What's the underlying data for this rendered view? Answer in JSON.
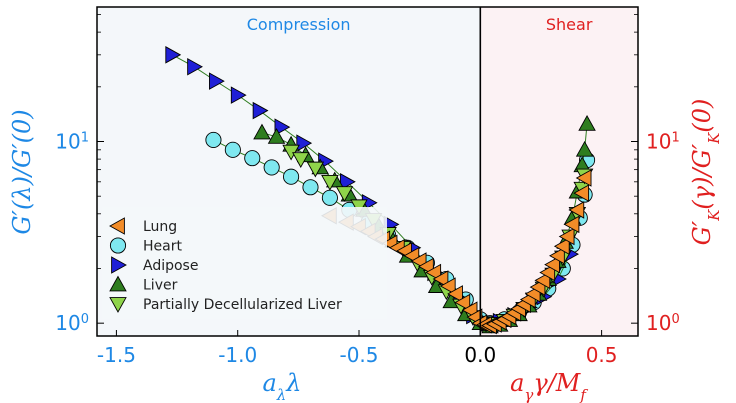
{
  "chart_data": {
    "type": "scatter",
    "title": "",
    "regions": {
      "left_label": "Compression",
      "right_label": "Shear",
      "left_color": "#1e88e5",
      "right_color": "#e02020",
      "left_bg": "#f4f7fa",
      "right_bg": "#fcf2f4",
      "boundary_x": 0.0
    },
    "xlim": [
      -1.58,
      0.65
    ],
    "ylim": [
      0.85,
      55
    ],
    "yscale": "log",
    "x_ticks": [
      {
        "value": -1.5,
        "label": "-1.5",
        "color": "#1e88e5"
      },
      {
        "value": -1.0,
        "label": "-1.0",
        "color": "#1e88e5"
      },
      {
        "value": -0.5,
        "label": "-0.5",
        "color": "#1e88e5"
      },
      {
        "value": 0.0,
        "label": "0.0",
        "color": "#000000"
      },
      {
        "value": 0.5,
        "label": "0.5",
        "color": "#e02020"
      }
    ],
    "y_ticks_left": [
      {
        "value": 1,
        "label": "10⁰"
      },
      {
        "value": 10,
        "label": "10¹"
      }
    ],
    "y_ticks_right": [
      {
        "value": 1,
        "label": "10⁰"
      },
      {
        "value": 10,
        "label": "10¹"
      }
    ],
    "xlabel_left": "aλλ",
    "xlabel_right": "aγγ/Mf",
    "ylabel_left": "G′(λ)/G′(0)",
    "ylabel_right": "G′K(γ)/G′K(0)",
    "legend_position": "lower-left",
    "series": [
      {
        "name": "Lung",
        "marker": "triangle-left",
        "color": "#f28c28",
        "connect": false,
        "points": [
          [
            -0.62,
            3.9
          ],
          [
            -0.55,
            3.6
          ],
          [
            -0.5,
            3.4
          ],
          [
            -0.46,
            3.2
          ],
          [
            -0.43,
            3.0
          ],
          [
            -0.4,
            2.9
          ],
          [
            -0.37,
            2.75
          ],
          [
            -0.34,
            2.6
          ],
          [
            -0.31,
            2.5
          ],
          [
            -0.28,
            2.35
          ],
          [
            -0.25,
            2.2
          ],
          [
            -0.22,
            2.05
          ],
          [
            -0.19,
            1.9
          ],
          [
            -0.16,
            1.75
          ],
          [
            -0.13,
            1.6
          ],
          [
            -0.1,
            1.45
          ],
          [
            -0.07,
            1.3
          ],
          [
            -0.04,
            1.18
          ],
          [
            -0.02,
            1.08
          ],
          [
            0.0,
            1.0
          ],
          [
            0.02,
            0.98
          ],
          [
            0.04,
            0.97
          ],
          [
            0.06,
            0.99
          ],
          [
            0.08,
            1.02
          ],
          [
            0.1,
            1.05
          ],
          [
            0.12,
            1.09
          ],
          [
            0.14,
            1.14
          ],
          [
            0.16,
            1.2
          ],
          [
            0.18,
            1.27
          ],
          [
            0.2,
            1.35
          ],
          [
            0.22,
            1.45
          ],
          [
            0.24,
            1.58
          ],
          [
            0.26,
            1.72
          ],
          [
            0.28,
            1.9
          ],
          [
            0.3,
            2.1
          ],
          [
            0.32,
            2.35
          ],
          [
            0.34,
            2.65
          ],
          [
            0.36,
            3.0
          ],
          [
            0.38,
            3.5
          ],
          [
            0.4,
            4.2
          ],
          [
            0.42,
            5.2
          ],
          [
            0.43,
            6.3
          ]
        ]
      },
      {
        "name": "Heart",
        "marker": "circle",
        "color": "#7fe8f0",
        "connect": true,
        "points": [
          [
            -1.1,
            10.2
          ],
          [
            -1.02,
            9.0
          ],
          [
            -0.94,
            8.1
          ],
          [
            -0.86,
            7.2
          ],
          [
            -0.78,
            6.4
          ],
          [
            -0.7,
            5.6
          ],
          [
            -0.62,
            4.9
          ],
          [
            -0.54,
            4.2
          ],
          [
            -0.46,
            3.6
          ],
          [
            -0.38,
            3.05
          ],
          [
            -0.3,
            2.6
          ],
          [
            -0.22,
            2.15
          ],
          [
            -0.14,
            1.75
          ],
          [
            -0.06,
            1.35
          ],
          [
            0.0,
            1.05
          ],
          [
            0.04,
            1.0
          ],
          [
            0.1,
            1.05
          ],
          [
            0.16,
            1.15
          ],
          [
            0.22,
            1.3
          ],
          [
            0.28,
            1.55
          ],
          [
            0.34,
            2.0
          ],
          [
            0.38,
            2.7
          ],
          [
            0.41,
            3.8
          ],
          [
            0.43,
            5.1
          ],
          [
            0.44,
            7.9
          ]
        ]
      },
      {
        "name": "Adipose",
        "marker": "triangle-right",
        "color": "#1f1fd6",
        "connect": true,
        "points": [
          [
            -1.27,
            30.0
          ],
          [
            -1.18,
            25.8
          ],
          [
            -1.09,
            21.5
          ],
          [
            -1.0,
            18.0
          ],
          [
            -0.91,
            14.8
          ],
          [
            -0.82,
            12.0
          ],
          [
            -0.73,
            9.8
          ],
          [
            -0.64,
            7.8
          ],
          [
            -0.55,
            6.0
          ],
          [
            -0.46,
            4.6
          ],
          [
            -0.37,
            3.5
          ],
          [
            -0.28,
            2.6
          ],
          [
            -0.19,
            1.9
          ],
          [
            -0.1,
            1.4
          ],
          [
            -0.03,
            1.1
          ],
          [
            0.03,
            1.0
          ],
          [
            0.08,
            1.02
          ],
          [
            0.14,
            1.1
          ],
          [
            0.2,
            1.22
          ],
          [
            0.26,
            1.4
          ],
          [
            0.32,
            1.75
          ],
          [
            0.37,
            2.4
          ]
        ]
      },
      {
        "name": "Liver",
        "marker": "triangle-up",
        "color": "#2e7d1f",
        "connect": true,
        "points": [
          [
            -0.9,
            11.2
          ],
          [
            -0.84,
            10.6
          ],
          [
            -0.78,
            9.6
          ],
          [
            -0.72,
            8.4
          ],
          [
            -0.66,
            7.2
          ],
          [
            -0.6,
            6.1
          ],
          [
            -0.54,
            5.1
          ],
          [
            -0.48,
            4.2
          ],
          [
            -0.42,
            3.45
          ],
          [
            -0.36,
            2.85
          ],
          [
            -0.3,
            2.35
          ],
          [
            -0.24,
            1.95
          ],
          [
            -0.18,
            1.6
          ],
          [
            -0.12,
            1.32
          ],
          [
            -0.06,
            1.12
          ],
          [
            0.0,
            1.0
          ],
          [
            0.04,
            0.96
          ],
          [
            0.08,
            0.98
          ],
          [
            0.12,
            1.04
          ],
          [
            0.16,
            1.12
          ],
          [
            0.2,
            1.25
          ],
          [
            0.24,
            1.45
          ],
          [
            0.28,
            1.75
          ],
          [
            0.32,
            2.2
          ],
          [
            0.35,
            2.8
          ],
          [
            0.38,
            3.8
          ],
          [
            0.4,
            5.3
          ],
          [
            0.42,
            7.4
          ],
          [
            0.43,
            9.0
          ],
          [
            0.44,
            12.5
          ]
        ]
      },
      {
        "name": "Partially Decellularized Liver",
        "marker": "triangle-down",
        "color": "#8fd44a",
        "connect": false,
        "points": [
          [
            -0.78,
            8.8
          ],
          [
            -0.74,
            8.0
          ],
          [
            -0.68,
            7.1
          ],
          [
            -0.62,
            6.0
          ],
          [
            -0.56,
            5.2
          ],
          [
            -0.5,
            4.4
          ],
          [
            -0.44,
            3.7
          ],
          [
            -0.38,
            3.1
          ],
          [
            -0.32,
            2.6
          ],
          [
            -0.26,
            2.15
          ],
          [
            -0.2,
            1.8
          ],
          [
            -0.14,
            1.5
          ],
          [
            -0.08,
            1.25
          ],
          [
            -0.03,
            1.08
          ],
          [
            0.02,
            1.0
          ],
          [
            0.06,
            0.99
          ],
          [
            0.1,
            1.03
          ],
          [
            0.14,
            1.1
          ],
          [
            0.18,
            1.2
          ],
          [
            0.22,
            1.35
          ],
          [
            0.26,
            1.55
          ],
          [
            0.3,
            1.85
          ],
          [
            0.34,
            2.3
          ],
          [
            0.37,
            3.0
          ],
          [
            0.4,
            4.0
          ],
          [
            0.42,
            5.5
          ],
          [
            0.43,
            6.5
          ]
        ]
      }
    ]
  }
}
